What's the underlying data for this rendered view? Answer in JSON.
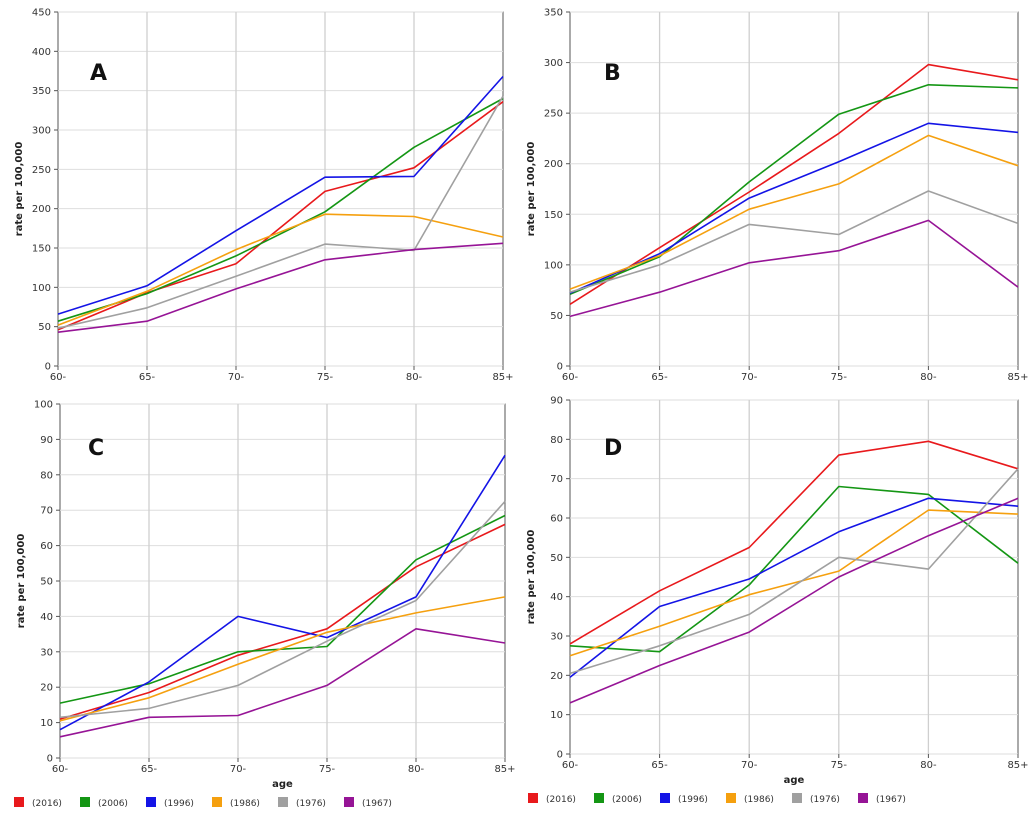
{
  "colors": {
    "(2016)": "#e8191c",
    "(2006)": "#149614",
    "(1996)": "#1414e6",
    "(1986)": "#f5a00f",
    "(1976)": "#a0a0a0",
    "(1967)": "#961496"
  },
  "chart_data": [
    {
      "type": "line",
      "panel_label": "A",
      "xlabel": "",
      "ylabel": "rate per 100,000",
      "categories": [
        "60-",
        "65-",
        "70-",
        "75-",
        "80-",
        "85+"
      ],
      "ylim": [
        0,
        450
      ],
      "yticks": [
        0,
        50,
        100,
        150,
        200,
        250,
        300,
        350,
        400,
        450
      ],
      "grid": true,
      "series": [
        {
          "name": "(2016)",
          "values": [
            46,
            93,
            130,
            222,
            252,
            336
          ]
        },
        {
          "name": "(2006)",
          "values": [
            57,
            92,
            140,
            196,
            278,
            340
          ]
        },
        {
          "name": "(1996)",
          "values": [
            66,
            102,
            172,
            240,
            241,
            368
          ]
        },
        {
          "name": "(1986)",
          "values": [
            52,
            95,
            148,
            193,
            190,
            164
          ]
        },
        {
          "name": "(1976)",
          "values": [
            48,
            74,
            114,
            155,
            147,
            343
          ]
        },
        {
          "name": "(1967)",
          "values": [
            43,
            57,
            98,
            135,
            148,
            156
          ]
        }
      ]
    },
    {
      "type": "line",
      "panel_label": "B",
      "xlabel": "",
      "ylabel": "rate per 100,000",
      "categories": [
        "60-",
        "65-",
        "70-",
        "75-",
        "80-",
        "85+"
      ],
      "ylim": [
        0,
        350
      ],
      "yticks": [
        0,
        50,
        100,
        150,
        200,
        250,
        300,
        350
      ],
      "grid": true,
      "series": [
        {
          "name": "(2016)",
          "values": [
            61,
            117,
            172,
            230,
            298,
            283
          ]
        },
        {
          "name": "(2006)",
          "values": [
            71,
            108,
            182,
            249,
            278,
            275
          ]
        },
        {
          "name": "(1996)",
          "values": [
            72,
            111,
            166,
            202,
            240,
            231
          ]
        },
        {
          "name": "(1986)",
          "values": [
            76,
            109,
            155,
            180,
            228,
            198
          ]
        },
        {
          "name": "(1976)",
          "values": [
            73,
            100,
            140,
            130,
            173,
            141
          ]
        },
        {
          "name": "(1967)",
          "values": [
            49,
            73,
            102,
            114,
            144,
            78
          ]
        }
      ]
    },
    {
      "type": "line",
      "panel_label": "C",
      "xlabel": "age",
      "ylabel": "rate per 100,000",
      "categories": [
        "60-",
        "65-",
        "70-",
        "75-",
        "80-",
        "85+"
      ],
      "ylim": [
        0,
        100
      ],
      "yticks": [
        0,
        10,
        20,
        30,
        40,
        50,
        60,
        70,
        80,
        90,
        100
      ],
      "grid": true,
      "series": [
        {
          "name": "(2016)",
          "values": [
            11,
            18.5,
            29,
            36.5,
            54,
            66
          ]
        },
        {
          "name": "(2006)",
          "values": [
            15.5,
            21,
            30,
            31.5,
            56,
            68.5
          ]
        },
        {
          "name": "(1996)",
          "values": [
            8,
            21.5,
            40,
            34,
            45.5,
            85.5
          ]
        },
        {
          "name": "(1986)",
          "values": [
            10.5,
            17,
            26.5,
            35.5,
            41,
            45.5
          ]
        },
        {
          "name": "(1976)",
          "values": [
            11.5,
            14,
            20.5,
            33,
            44.5,
            72.5
          ]
        },
        {
          "name": "(1967)",
          "values": [
            6,
            11.5,
            12,
            20.5,
            36.5,
            32.5
          ]
        }
      ]
    },
    {
      "type": "line",
      "panel_label": "D",
      "xlabel": "age",
      "ylabel": "rate per 100,000",
      "categories": [
        "60-",
        "65-",
        "70-",
        "75-",
        "80-",
        "85+"
      ],
      "ylim": [
        0,
        90
      ],
      "yticks": [
        0,
        10,
        20,
        30,
        40,
        50,
        60,
        70,
        80,
        90
      ],
      "grid": true,
      "series": [
        {
          "name": "(2016)",
          "values": [
            28,
            41.5,
            52.5,
            76,
            79.5,
            72.5
          ]
        },
        {
          "name": "(2006)",
          "values": [
            27.5,
            26,
            43,
            68,
            66,
            48.5
          ]
        },
        {
          "name": "(1996)",
          "values": [
            19.5,
            37.5,
            44.5,
            56.5,
            65,
            63
          ]
        },
        {
          "name": "(1986)",
          "values": [
            25,
            32.5,
            40.5,
            46.5,
            62,
            61
          ]
        },
        {
          "name": "(1976)",
          "values": [
            20.5,
            27.5,
            35.5,
            50,
            47,
            72.5
          ]
        },
        {
          "name": "(1967)",
          "values": [
            13,
            22.5,
            31,
            45,
            55.5,
            65
          ]
        }
      ]
    }
  ],
  "legends": [
    {
      "items": [
        "(2016)",
        "(2006)",
        "(1996)",
        "(1986)",
        "(1976)",
        "(1967)"
      ]
    },
    {
      "items": [
        "(2016)",
        "(2006)",
        "(1996)",
        "(1986)",
        "(1976)",
        "(1967)"
      ]
    }
  ]
}
